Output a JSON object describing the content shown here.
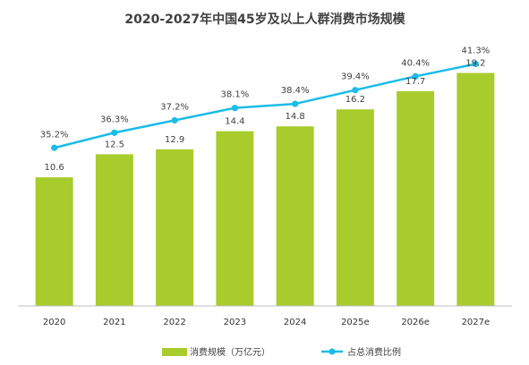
{
  "chart_data": {
    "type": "bar",
    "title": "2020-2027年中国45岁及以上人群消费市场规模",
    "categories": [
      "2020",
      "2021",
      "2022",
      "2023",
      "2024",
      "2025e",
      "2026e",
      "2027e"
    ],
    "series": [
      {
        "name": "消费规模（万亿元）",
        "type": "bar",
        "axis": "left",
        "color": "#a8cc2c",
        "values": [
          10.6,
          12.5,
          12.9,
          14.4,
          14.8,
          16.2,
          17.7,
          19.2
        ],
        "labels": [
          "10.6",
          "12.5",
          "12.9",
          "14.4",
          "14.8",
          "16.2",
          "17.7",
          "19.2"
        ]
      },
      {
        "name": "占总消费比例",
        "type": "line",
        "axis": "right",
        "color": "#1bbce8",
        "values": [
          35.2,
          36.3,
          37.2,
          38.1,
          38.4,
          39.4,
          40.4,
          41.3
        ],
        "labels": [
          "35.2%",
          "36.3%",
          "37.2%",
          "38.1%",
          "38.4%",
          "39.4%",
          "40.4%",
          "41.3%"
        ]
      }
    ],
    "ylim": [
      0,
      23
    ],
    "y2lim": [
      23.7,
      44.0
    ],
    "grid": false,
    "legend": "bottom"
  }
}
